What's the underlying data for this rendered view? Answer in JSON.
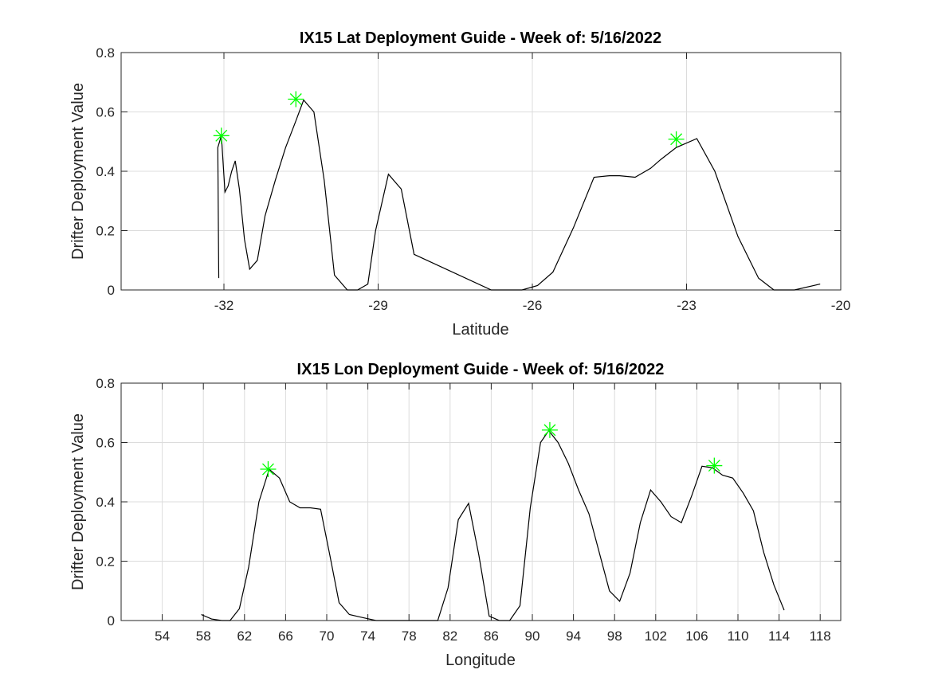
{
  "chart_data": [
    {
      "type": "line",
      "title": "IX15 Lat Deployment Guide - Week of: 5/16/2022",
      "xlabel": "Latitude",
      "ylabel": "Drifter Deployment Value",
      "xlim": [
        -34,
        -20
      ],
      "ylim": [
        0,
        0.8
      ],
      "xticks": [
        -32,
        -29,
        -26,
        -23,
        -20
      ],
      "xtick_labels": [
        "-32",
        "-29",
        "-26",
        "-23",
        "-20"
      ],
      "yticks": [
        0,
        0.2,
        0.4,
        0.6,
        0.8
      ],
      "ytick_labels": [
        "0",
        "0.2",
        "0.4",
        "0.6",
        "0.8"
      ],
      "grid": true,
      "line_color": "#000000",
      "marker_color": "#00ff00",
      "series": [
        {
          "x": [
            -32.1,
            -32.12,
            -32.05,
            -31.98,
            -31.92,
            -31.85,
            -31.78,
            -31.7,
            -31.6,
            -31.5,
            -31.35,
            -31.2,
            -31.0,
            -30.8,
            -30.6,
            -30.45,
            -30.25,
            -30.05,
            -29.85,
            -29.6,
            -29.4,
            -29.2,
            -29.05,
            -28.8,
            -28.55,
            -28.3,
            -26.8,
            -26.5,
            -26.2,
            -25.9,
            -25.6,
            -25.2,
            -24.8,
            -24.5,
            -24.3,
            -24.0,
            -23.7,
            -23.5,
            -23.2,
            -22.8,
            -22.45,
            -22.0,
            -21.6,
            -21.3,
            -20.9,
            -20.4
          ],
          "y": [
            0.04,
            0.48,
            0.52,
            0.33,
            0.35,
            0.4,
            0.435,
            0.34,
            0.17,
            0.07,
            0.1,
            0.25,
            0.37,
            0.48,
            0.57,
            0.64,
            0.6,
            0.37,
            0.05,
            0.0,
            0.0,
            0.02,
            0.2,
            0.39,
            0.34,
            0.12,
            0.0,
            0.0,
            0.0,
            0.015,
            0.06,
            0.21,
            0.38,
            0.385,
            0.385,
            0.38,
            0.41,
            0.44,
            0.48,
            0.51,
            0.4,
            0.18,
            0.04,
            0.0,
            0.0,
            0.02
          ]
        }
      ],
      "peaks": [
        {
          "x": -32.05,
          "y": 0.52
        },
        {
          "x": -30.6,
          "y": 0.643
        },
        {
          "x": -23.2,
          "y": 0.508
        }
      ]
    },
    {
      "type": "line",
      "title": "IX15 Lon Deployment Guide - Week of: 5/16/2022",
      "xlabel": "Longitude",
      "ylabel": "Drifter Deployment Value",
      "xlim": [
        50,
        120
      ],
      "ylim": [
        0,
        0.8
      ],
      "xticks": [
        54,
        58,
        62,
        66,
        70,
        74,
        78,
        82,
        86,
        90,
        94,
        98,
        102,
        106,
        110,
        114,
        118
      ],
      "xtick_labels": [
        "54",
        "58",
        "62",
        "66",
        "70",
        "74",
        "78",
        "82",
        "86",
        "90",
        "94",
        "98",
        "102",
        "106",
        "110",
        "114",
        "118"
      ],
      "yticks": [
        0,
        0.2,
        0.4,
        0.6,
        0.8
      ],
      "ytick_labels": [
        "0",
        "0.2",
        "0.4",
        "0.6",
        "0.8"
      ],
      "grid": true,
      "line_color": "#000000",
      "marker_color": "#00ff00",
      "series": [
        {
          "x": [
            57.8,
            58.8,
            59.8,
            60.6,
            61.5,
            62.4,
            63.4,
            64.4,
            65.4,
            66.4,
            67.4,
            68.4,
            69.4,
            70.3,
            71.2,
            72.2,
            73.5,
            74.8,
            76.0,
            77.5,
            78.5,
            79.8,
            80.8,
            81.8,
            82.8,
            83.8,
            84.8,
            85.8,
            86.8,
            87.8,
            88.8,
            89.8,
            90.8,
            91.6,
            92.5,
            93.5,
            94.5,
            95.5,
            96.5,
            97.5,
            98.5,
            99.5,
            100.5,
            101.5,
            102.5,
            103.5,
            104.5,
            105.5,
            106.5,
            107.5,
            108.5,
            109.5,
            110.5,
            111.5,
            112.5,
            113.5,
            114.5
          ],
          "y": [
            0.02,
            0.005,
            0.0,
            0.0,
            0.04,
            0.18,
            0.4,
            0.51,
            0.48,
            0.4,
            0.38,
            0.38,
            0.375,
            0.22,
            0.06,
            0.02,
            0.01,
            0.0,
            0.0,
            0.0,
            0.0,
            0.0,
            0.0,
            0.11,
            0.34,
            0.395,
            0.22,
            0.015,
            0.0,
            0.0,
            0.05,
            0.38,
            0.6,
            0.64,
            0.6,
            0.53,
            0.44,
            0.36,
            0.23,
            0.1,
            0.065,
            0.16,
            0.33,
            0.44,
            0.4,
            0.35,
            0.33,
            0.42,
            0.52,
            0.515,
            0.49,
            0.48,
            0.43,
            0.37,
            0.23,
            0.12,
            0.035
          ]
        }
      ],
      "peaks": [
        {
          "x": 64.3,
          "y": 0.51
        },
        {
          "x": 91.7,
          "y": 0.642
        },
        {
          "x": 107.7,
          "y": 0.522
        }
      ]
    }
  ]
}
